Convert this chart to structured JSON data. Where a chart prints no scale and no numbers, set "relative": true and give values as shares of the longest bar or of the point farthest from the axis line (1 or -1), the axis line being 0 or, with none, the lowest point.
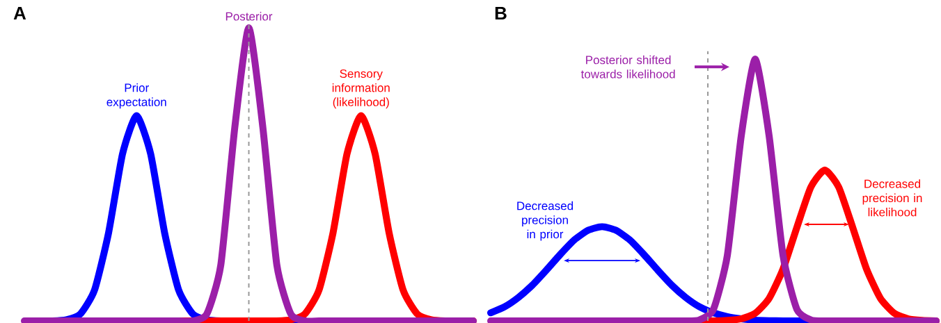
{
  "chart_data": [
    {
      "type": "line",
      "title": "A",
      "relative": true,
      "categories": [
        null,
        null,
        null,
        null,
        null,
        null,
        null,
        null,
        null,
        null,
        null,
        null,
        null,
        null,
        null,
        null,
        null,
        null,
        null,
        null,
        null,
        null,
        null,
        null,
        null,
        null,
        null,
        null,
        null,
        null,
        null,
        null,
        null
      ],
      "series": [
        {
          "name": "Prior expectation",
          "color": "#0000ff",
          "values": [
            null,
            null,
            0,
            0.004,
            0.024,
            0.105,
            0.3,
            0.57,
            0.7,
            0.57,
            0.3,
            0.105,
            0.024,
            0.004,
            0,
            null,
            null,
            null,
            null,
            0,
            0,
            null,
            null,
            null,
            null,
            null,
            null,
            null,
            null,
            null,
            null,
            null,
            null
          ]
        },
        {
          "name": "Sensory information (likelihood)",
          "color": "#ff0000",
          "values": [
            null,
            null,
            null,
            null,
            null,
            null,
            null,
            null,
            null,
            null,
            null,
            0,
            0,
            0,
            0,
            0,
            0,
            0,
            0,
            0.004,
            0.024,
            0.105,
            0.3,
            0.57,
            0.7,
            0.57,
            0.3,
            0.105,
            0.024,
            0.004,
            0,
            0,
            0
          ]
        },
        {
          "name": "Posterior",
          "color": "#9b1fa8",
          "values": [
            0,
            0,
            0,
            0,
            0,
            0,
            0,
            0,
            0,
            0,
            0,
            0,
            0,
            0.023,
            0.19,
            0.66,
            1,
            0.66,
            0.19,
            0.023,
            0,
            0,
            0,
            0,
            0,
            0,
            0,
            0,
            0,
            0,
            0,
            0,
            0
          ]
        }
      ]
    },
    {
      "type": "line",
      "title": "B",
      "relative": true,
      "categories": [
        null,
        null,
        null,
        null,
        null,
        null,
        null,
        null,
        null,
        null,
        null,
        null,
        null,
        null,
        null,
        null,
        null,
        null,
        null,
        null,
        null,
        null,
        null,
        null,
        null,
        null,
        null,
        null,
        null,
        null,
        null,
        null,
        null
      ],
      "series": [
        {
          "name": "Decreased precision in prior",
          "color": "#0000ff",
          "values": [
            0.031,
            0.054,
            0.09,
            0.137,
            0.194,
            0.254,
            0.309,
            0.346,
            0.36,
            0.346,
            0.309,
            0.254,
            0.194,
            0.137,
            0.09,
            0.054,
            0.031,
            0.016,
            0.008,
            0.003,
            0.001,
            0,
            0,
            0,
            0,
            null,
            null,
            null,
            null,
            null,
            null,
            null,
            null
          ]
        },
        {
          "name": "Decreased precision in likelihood",
          "color": "#ff0000",
          "values": [
            null,
            null,
            null,
            null,
            null,
            null,
            null,
            null,
            null,
            null,
            null,
            null,
            null,
            null,
            null,
            0,
            0,
            0.002,
            0.008,
            0.029,
            0.086,
            0.198,
            0.358,
            0.511,
            0.576,
            0.511,
            0.358,
            0.198,
            0.086,
            0.029,
            0.008,
            0.002,
            0
          ]
        },
        {
          "name": "Posterior shifted towards likelihood",
          "color": "#9b1fa8",
          "values": [
            0,
            0,
            0,
            0,
            0,
            0,
            0,
            0,
            0,
            0,
            0,
            0,
            0,
            0,
            0,
            0.004,
            0.044,
            0.25,
            0.707,
            1,
            0.707,
            0.25,
            0.044,
            0.004,
            0,
            0,
            0,
            0,
            0,
            0,
            0,
            0,
            0
          ]
        }
      ]
    }
  ]
}
